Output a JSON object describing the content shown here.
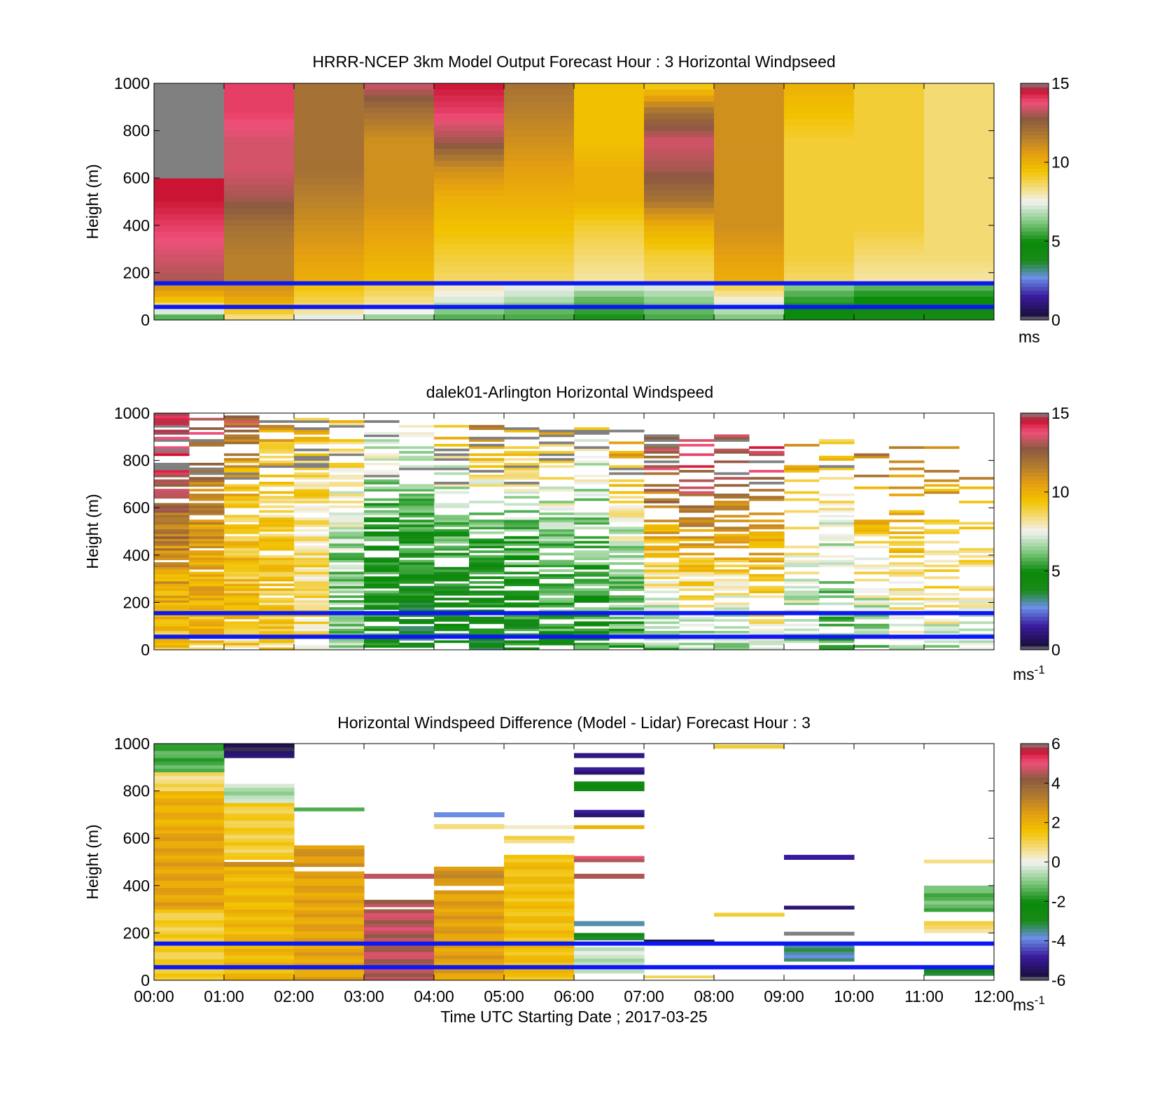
{
  "chart_data": [
    {
      "type": "heatmap",
      "title": "HRRR-NCEP 3km Model Output   Forecast Hour : 3 Horizontal Windpseed",
      "ylabel": "Height (m)",
      "ylim": [
        0,
        1000
      ],
      "yticks": [
        "0",
        "200",
        "400",
        "600",
        "800",
        "1000"
      ],
      "xlim": [
        "00:00",
        "12:00"
      ],
      "colorbar": {
        "ticks": [
          "0",
          "5",
          "10",
          "15"
        ],
        "range": [
          0,
          15
        ],
        "unit": "ms",
        "unit_superscript": ""
      },
      "reference_lines": [
        55,
        155
      ],
      "reference_line_color": "#0b18f4",
      "columns": [
        {
          "t": "00:00",
          "bottom": [
            5,
            8,
            10,
            11
          ],
          "top": [
            13,
            13.5,
            14,
            14.5,
            14.5,
            15,
            15,
            15
          ],
          "missing_above": 600
        },
        {
          "t": "01:00",
          "bottom": [
            8,
            9.5,
            10.5,
            11
          ],
          "top": [
            11.5,
            11.5,
            12,
            13,
            13.5,
            13.5,
            14,
            14
          ]
        },
        {
          "t": "02:00",
          "bottom": [
            7,
            8.5,
            9,
            9.5
          ],
          "top": [
            10,
            10.5,
            11,
            11.5,
            12,
            12,
            12,
            12
          ]
        },
        {
          "t": "03:00",
          "bottom": [
            6,
            8,
            8.5,
            9
          ],
          "top": [
            9.5,
            10,
            10.5,
            11,
            11,
            11,
            12,
            13.5
          ]
        },
        {
          "t": "04:00",
          "bottom": [
            5.5,
            6.5,
            7.5,
            8
          ],
          "top": [
            8.5,
            9,
            9.5,
            10,
            11,
            13,
            14,
            14.5
          ]
        },
        {
          "t": "05:00",
          "bottom": [
            5.5,
            6,
            7,
            7.5
          ],
          "top": [
            8.5,
            9,
            9.5,
            10,
            10.5,
            11,
            11.5,
            12
          ]
        },
        {
          "t": "06:00",
          "bottom": [
            5,
            5.5,
            6,
            7.5
          ],
          "top": [
            8,
            8.5,
            9,
            10,
            10,
            9.5,
            9.5,
            9.5
          ]
        },
        {
          "t": "07:00",
          "bottom": [
            5.5,
            6,
            6.5,
            7.5
          ],
          "top": [
            8.5,
            9,
            10,
            12,
            13,
            13.5,
            12,
            9
          ]
        },
        {
          "t": "08:00",
          "bottom": [
            6,
            7,
            8,
            9
          ],
          "top": [
            10,
            10.5,
            11,
            11,
            11,
            11,
            11,
            11
          ]
        },
        {
          "t": "09:00",
          "bottom": [
            4.5,
            5,
            5.5,
            6.5
          ],
          "top": [
            8.5,
            9,
            9,
            9,
            9,
            9,
            9.5,
            10
          ]
        },
        {
          "t": "10:00",
          "bottom": [
            4,
            4.5,
            5,
            6
          ],
          "top": [
            8,
            8.5,
            9,
            9,
            9,
            9,
            9,
            9
          ]
        },
        {
          "t": "11:00",
          "bottom": [
            4,
            4.5,
            5,
            6
          ],
          "top": [
            8,
            8.5,
            8.5,
            8.5,
            8.5,
            8.5,
            8.5,
            8.5
          ]
        }
      ]
    },
    {
      "type": "heatmap",
      "title": "dalek01-Arlington  Horizontal Windspeed",
      "ylabel": "Height (m)",
      "ylim": [
        0,
        1000
      ],
      "yticks": [
        "0",
        "200",
        "400",
        "600",
        "800",
        "1000"
      ],
      "xlim": [
        "00:00",
        "12:00"
      ],
      "colorbar": {
        "ticks": [
          "0",
          "5",
          "10",
          "15"
        ],
        "range": [
          0,
          15
        ],
        "unit": "ms",
        "unit_superscript": "-1"
      },
      "reference_lines": [
        55,
        155
      ],
      "reference_line_color": "#0b18f4",
      "columns": [
        {
          "t": "00:00",
          "v": [
            9,
            10,
            11,
            12.5,
            14,
            14.5
          ]
        },
        {
          "t": "00:30",
          "v": [
            9,
            10,
            10.5,
            11,
            12.5,
            13.5
          ]
        },
        {
          "t": "01:00",
          "v": [
            9,
            9.5,
            9.5,
            9.5,
            10.5,
            13
          ]
        },
        {
          "t": "01:30",
          "v": [
            9,
            9,
            9,
            9,
            9.5,
            11
          ]
        },
        {
          "t": "02:00",
          "v": [
            8.5,
            8.5,
            8.5,
            8.5,
            9,
            10
          ]
        },
        {
          "t": "02:30",
          "v": [
            6.5,
            6,
            6.5,
            7.5,
            8.5,
            9.5
          ]
        },
        {
          "t": "03:00",
          "v": [
            5,
            5,
            5,
            6,
            7,
            8
          ]
        },
        {
          "t": "03:30",
          "v": [
            4,
            4.5,
            5,
            5.5,
            7,
            9
          ]
        },
        {
          "t": "04:00",
          "v": [
            4,
            4.5,
            5,
            6,
            8,
            11
          ]
        },
        {
          "t": "04:30",
          "v": [
            4,
            4.5,
            5,
            6.5,
            9,
            12
          ]
        },
        {
          "t": "05:00",
          "v": [
            4.5,
            5,
            5.5,
            6.5,
            9,
            11.5
          ]
        },
        {
          "t": "05:30",
          "v": [
            5,
            5.5,
            6,
            7,
            8.5,
            11
          ]
        },
        {
          "t": "06:00",
          "v": [
            5,
            5.5,
            6,
            6.5,
            7.5,
            9
          ]
        },
        {
          "t": "06:30",
          "v": [
            5.5,
            6,
            6.5,
            8,
            10,
            13
          ]
        },
        {
          "t": "07:00",
          "v": [
            6,
            7,
            9,
            11.5,
            13,
            14
          ]
        },
        {
          "t": "07:30",
          "v": [
            6.5,
            8,
            9.5,
            12,
            13.5,
            14
          ]
        },
        {
          "t": "08:00",
          "v": [
            6.5,
            8,
            9.5,
            11.5,
            13,
            14
          ]
        },
        {
          "t": "08:30",
          "v": [
            7,
            8.5,
            10,
            12,
            13.5,
            14.5
          ]
        },
        {
          "t": "09:00",
          "v": [
            6,
            7,
            8,
            9,
            10,
            11
          ]
        },
        {
          "t": "09:30",
          "v": [
            5,
            6,
            7,
            8,
            9,
            10
          ]
        },
        {
          "t": "10:00",
          "v": [
            6,
            7,
            8.5,
            10,
            11.5,
            12.5
          ]
        },
        {
          "t": "10:30",
          "v": [
            7,
            8,
            9,
            10,
            11,
            12
          ]
        },
        {
          "t": "11:00",
          "v": [
            7,
            8,
            9,
            10,
            11,
            12
          ]
        },
        {
          "t": "11:30",
          "v": [
            7,
            8,
            9,
            10,
            11,
            12
          ]
        }
      ]
    },
    {
      "type": "heatmap",
      "title": "Horizontal Windspeed Difference (Model - Lidar) Forecast Hour : 3",
      "ylabel": "Height (m)",
      "xlabel": "Time UTC  Starting Date ; 2017-03-25",
      "ylim": [
        0,
        1000
      ],
      "yticks": [
        "0",
        "200",
        "400",
        "600",
        "800",
        "1000"
      ],
      "xticks": [
        "00:00",
        "01:00",
        "02:00",
        "03:00",
        "04:00",
        "05:00",
        "06:00",
        "07:00",
        "08:00",
        "09:00",
        "10:00",
        "11:00",
        "12:00"
      ],
      "colorbar": {
        "ticks": [
          "-6",
          "-4",
          "-2",
          "0",
          "2",
          "4",
          "6"
        ],
        "range": [
          -6,
          6
        ],
        "unit": "ms",
        "unit_superscript": "-1"
      },
      "reference_lines": [
        55,
        155
      ],
      "reference_line_color": "#0b18f4",
      "segments": [
        {
          "col": 0,
          "from": 0,
          "to": 300,
          "v": 1.2
        },
        {
          "col": 0,
          "from": 300,
          "to": 620,
          "v": 2.3
        },
        {
          "col": 0,
          "from": 620,
          "to": 800,
          "v": 2.0
        },
        {
          "col": 0,
          "from": 800,
          "to": 880,
          "v": 0.8
        },
        {
          "col": 0,
          "from": 880,
          "to": 1000,
          "v": -1.5
        },
        {
          "col": 1,
          "from": 0,
          "to": 480,
          "v": 1.8
        },
        {
          "col": 1,
          "from": 480,
          "to": 500,
          "v": 2.6
        },
        {
          "col": 1,
          "from": 510,
          "to": 750,
          "v": 1.2
        },
        {
          "col": 1,
          "from": 750,
          "to": 830,
          "v": -0.6
        },
        {
          "col": 1,
          "from": 940,
          "to": 1000,
          "v": -5.5
        },
        {
          "col": 2,
          "from": 0,
          "to": 460,
          "v": 2.3
        },
        {
          "col": 2,
          "from": 480,
          "to": 570,
          "v": 2.6
        },
        {
          "col": 2,
          "from": 715,
          "to": 730,
          "v": -1.8
        },
        {
          "col": 3,
          "from": 0,
          "to": 300,
          "v": 4.6
        },
        {
          "col": 3,
          "from": 310,
          "to": 340,
          "v": 4.6
        },
        {
          "col": 3,
          "from": 430,
          "to": 450,
          "v": 4.6
        },
        {
          "col": 4,
          "from": 0,
          "to": 380,
          "v": 2.4
        },
        {
          "col": 4,
          "from": 400,
          "to": 480,
          "v": 2.8
        },
        {
          "col": 4,
          "from": 640,
          "to": 660,
          "v": 1.0
        },
        {
          "col": 4,
          "from": 690,
          "to": 710,
          "v": -3.6
        },
        {
          "col": 5,
          "from": 0,
          "to": 530,
          "v": 1.6
        },
        {
          "col": 5,
          "from": 580,
          "to": 610,
          "v": 1.0
        },
        {
          "col": 5,
          "from": 640,
          "to": 655,
          "v": 0.6
        },
        {
          "col": 6,
          "from": 30,
          "to": 140,
          "v": -0.4
        },
        {
          "col": 6,
          "from": 170,
          "to": 200,
          "v": -3.0
        },
        {
          "col": 6,
          "from": 230,
          "to": 250,
          "v": -3.5
        },
        {
          "col": 6,
          "from": 430,
          "to": 450,
          "v": 4.6
        },
        {
          "col": 6,
          "from": 500,
          "to": 525,
          "v": 4.6
        },
        {
          "col": 6,
          "from": 640,
          "to": 655,
          "v": 2.0
        },
        {
          "col": 6,
          "from": 690,
          "to": 720,
          "v": -5.2
        },
        {
          "col": 6,
          "from": 800,
          "to": 840,
          "v": -2.5
        },
        {
          "col": 6,
          "from": 870,
          "to": 900,
          "v": -5.2
        },
        {
          "col": 6,
          "from": 940,
          "to": 960,
          "v": -5.0
        },
        {
          "col": 7,
          "from": 160,
          "to": 172,
          "v": -6.0
        },
        {
          "col": 7,
          "from": 10,
          "to": 20,
          "v": 0.8
        },
        {
          "col": 8,
          "from": 270,
          "to": 285,
          "v": 0.9
        },
        {
          "col": 8,
          "from": 980,
          "to": 995,
          "v": 0.9
        },
        {
          "col": 9,
          "from": 80,
          "to": 150,
          "v": -3.5
        },
        {
          "col": 9,
          "from": 190,
          "to": 205,
          "v": 6.0
        },
        {
          "col": 9,
          "from": 300,
          "to": 315,
          "v": -5.4
        },
        {
          "col": 9,
          "from": 510,
          "to": 530,
          "v": -5.0
        },
        {
          "col": 11,
          "from": 20,
          "to": 60,
          "v": -2.8
        },
        {
          "col": 11,
          "from": 200,
          "to": 250,
          "v": 0.8
        },
        {
          "col": 11,
          "from": 290,
          "to": 400,
          "v": -1.3
        },
        {
          "col": 11,
          "from": 495,
          "to": 510,
          "v": 1.0
        }
      ]
    }
  ]
}
